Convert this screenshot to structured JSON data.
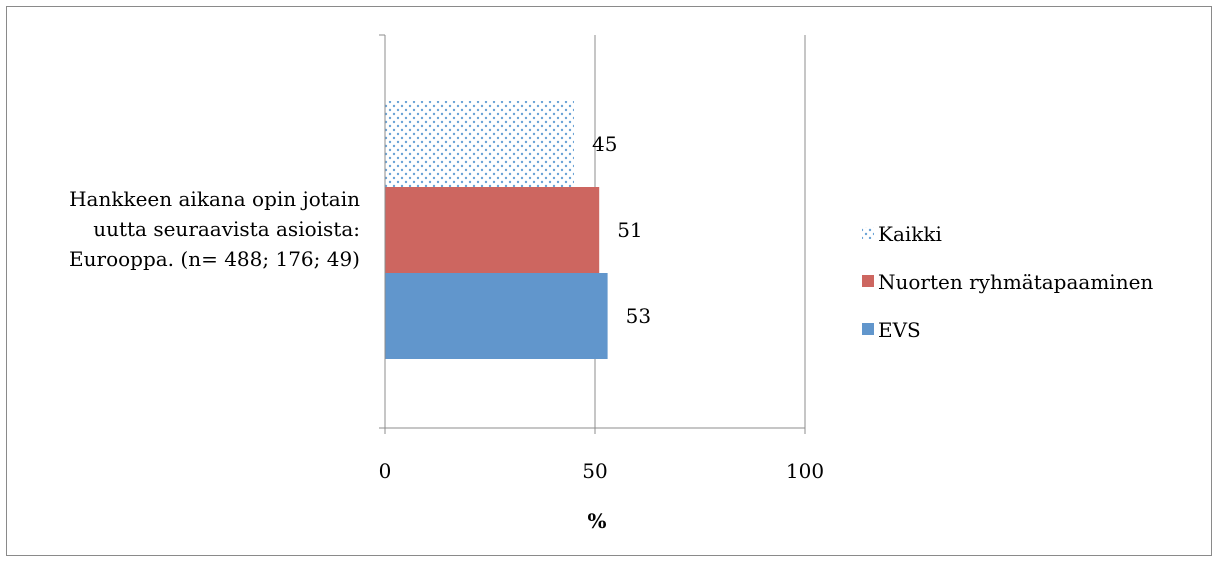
{
  "chart_data": {
    "type": "bar",
    "orientation": "horizontal",
    "categories": [
      "Hankkeen aikana opin jotain uutta seuraavista asioista: Eurooppa. (n= 488; 176; 49)"
    ],
    "category_lines": [
      "Hankkeen aikana opin jotain",
      "uutta seuraavista asioista:",
      "Eurooppa. (n= 488; 176; 49)"
    ],
    "series": [
      {
        "name": "Kaikki",
        "values": [
          45
        ],
        "color": "#9dc3e6",
        "pattern": "dotted"
      },
      {
        "name": "Nuorten ryhmätapaaminen",
        "values": [
          51
        ],
        "color": "#cd6660"
      },
      {
        "name": "EVS",
        "values": [
          53
        ],
        "color": "#6196cc"
      }
    ],
    "data_labels": [
      "45",
      "51",
      "53"
    ],
    "xlabel": "%",
    "ylabel": "",
    "xlim": [
      0,
      100
    ],
    "x_ticks": [
      "0",
      "50",
      "100"
    ],
    "grid": "vertical major gridlines",
    "legend_position": "right"
  }
}
